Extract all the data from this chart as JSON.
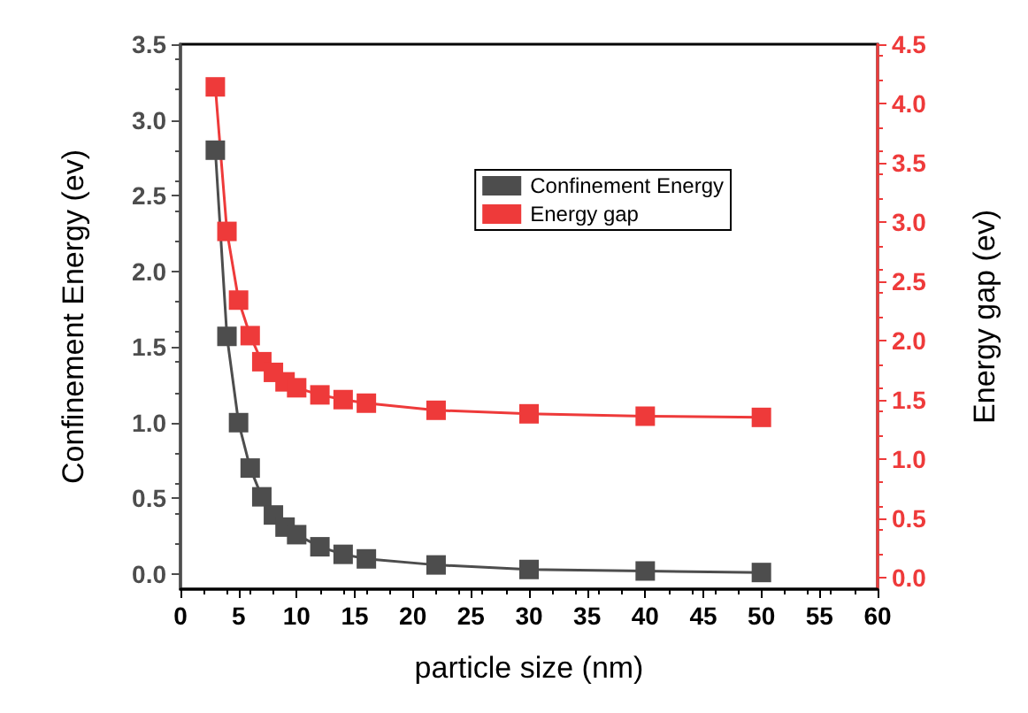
{
  "chart_data": {
    "type": "line",
    "xlabel": "particle size (nm)",
    "ylabel": "Confinement Energy (ev)",
    "y2label": "Energy gap (ev)",
    "x": [
      3,
      4,
      5,
      6,
      7,
      8,
      9,
      10,
      12,
      14,
      16,
      22,
      30,
      40,
      50
    ],
    "series": [
      {
        "name": "Confinement Energy",
        "color": "#4d4d4d",
        "values": [
          2.8,
          1.57,
          1.0,
          0.7,
          0.51,
          0.39,
          0.31,
          0.26,
          0.18,
          0.13,
          0.1,
          0.06,
          0.03,
          0.02,
          0.01
        ]
      },
      {
        "name": "Energy gap",
        "color": "#ee3a3a",
        "axis": "y2",
        "values": [
          4.14,
          2.92,
          2.34,
          2.04,
          1.82,
          1.73,
          1.65,
          1.6,
          1.54,
          1.5,
          1.47,
          1.41,
          1.38,
          1.36,
          1.35
        ]
      }
    ],
    "xlim": [
      0,
      60
    ],
    "xticks": [
      0,
      5,
      10,
      15,
      20,
      25,
      30,
      35,
      40,
      45,
      50,
      55,
      60
    ],
    "ylim": [
      -0.1,
      3.5
    ],
    "yticks": [
      {
        "value": 0,
        "label": "0.0"
      },
      0.5,
      {
        "value": 1,
        "label": "1.0"
      },
      1.5,
      {
        "value": 2,
        "label": "2.0"
      },
      2.5,
      {
        "value": 3,
        "label": "3.0"
      },
      3.5
    ],
    "y2lim": [
      -0.1,
      4.5
    ],
    "y2ticks": [
      {
        "value": 0,
        "label": "0.0"
      },
      0.5,
      {
        "value": 1,
        "label": "1.0"
      },
      1.5,
      {
        "value": 2,
        "label": "2.0"
      },
      2.5,
      {
        "value": 3,
        "label": "3.0"
      },
      3.5,
      {
        "value": 4,
        "label": "4.0"
      },
      4.5
    ],
    "marker": "square",
    "line_style": "solid",
    "legend": "top right",
    "grid": false
  }
}
